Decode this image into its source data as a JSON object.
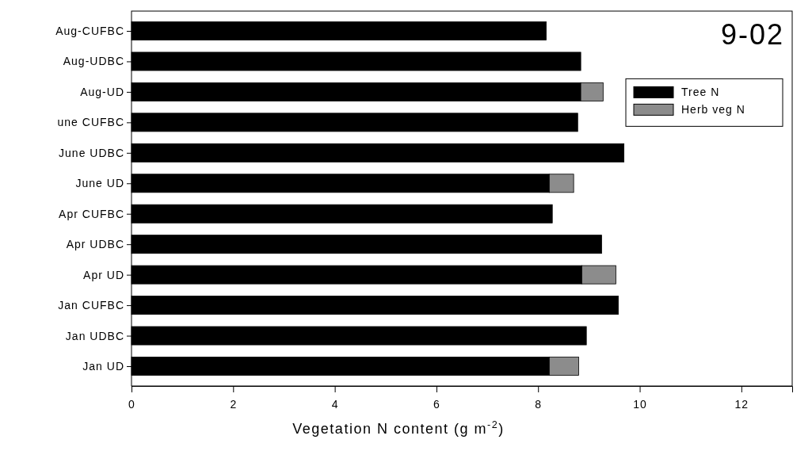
{
  "chart_data": {
    "type": "bar",
    "orientation": "horizontal",
    "stacked": true,
    "title": "9-02",
    "xlabel": "Vegetation N content (g m$^{-2}$)",
    "categories": [
      "Aug-CUFBC",
      "Aug-UDBC",
      "Aug-UD",
      "une CUFBC",
      "June UDBC",
      "June UD",
      "Apr CUFBC",
      "Apr UDBC",
      "Apr UD",
      "Jan CUFBC",
      "Jan UDBC",
      "Jan UD"
    ],
    "series": [
      {
        "name": "Tree N",
        "color": "#000000",
        "values": [
          8.16,
          8.84,
          8.84,
          8.78,
          9.69,
          8.22,
          8.28,
          9.25,
          8.86,
          9.58,
          8.95,
          8.22
        ]
      },
      {
        "name": "Herb veg N",
        "color": "#8c8c8c",
        "values": [
          null,
          null,
          0.44,
          null,
          null,
          0.48,
          null,
          null,
          0.67,
          null,
          null,
          0.58
        ]
      }
    ],
    "xlim": [
      0,
      13
    ],
    "xticks": [
      0,
      2,
      4,
      6,
      8,
      10,
      12
    ],
    "grid": false,
    "legend": "top right"
  }
}
